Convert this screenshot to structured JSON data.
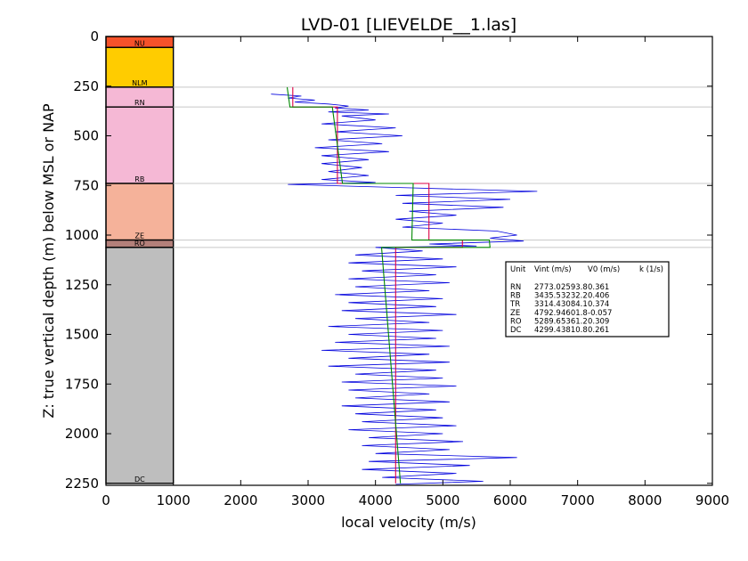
{
  "chart_data": {
    "type": "line",
    "title": "LVD-01 [LIEVELDE__1.las]",
    "xlabel": "local velocity (m/s)",
    "ylabel": "Z: true vertical depth (m) below MSL or NAP",
    "xlim": [
      0,
      9000
    ],
    "ylim": [
      2260,
      0
    ],
    "x_ticks": [
      0,
      1000,
      2000,
      3000,
      4000,
      5000,
      6000,
      7000,
      8000,
      9000
    ],
    "y_ticks": [
      0,
      250,
      500,
      750,
      1000,
      1250,
      1500,
      1750,
      2000,
      2250
    ],
    "grid": false,
    "stratigraphy": [
      {
        "unit": "NU",
        "top": 0,
        "base": 55,
        "color": "#f5522a"
      },
      {
        "unit": "NLM",
        "top": 55,
        "base": 255,
        "color": "#ffcc00"
      },
      {
        "unit": "RN",
        "top": 255,
        "base": 355,
        "color": "#f5b8d5"
      },
      {
        "unit": "RB",
        "top": 355,
        "base": 740,
        "color": "#f5b8d5"
      },
      {
        "unit": "ZE",
        "top": 740,
        "base": 1025,
        "color": "#f5b29a"
      },
      {
        "unit": "RO",
        "top": 1025,
        "base": 1062,
        "color": "#b3807a"
      },
      {
        "unit": "DC",
        "top": 1062,
        "base": 2250,
        "color": "#bebebe"
      }
    ],
    "horizon_depths": [
      255,
      355,
      740,
      1025,
      1062
    ],
    "series": [
      {
        "name": "",
        "color": "#0000dd",
        "points": [
          [
            2450,
            290
          ],
          [
            2900,
            300
          ],
          [
            2700,
            310
          ],
          [
            3100,
            320
          ],
          [
            2800,
            330
          ],
          [
            3300,
            340
          ],
          [
            3600,
            350
          ],
          [
            3400,
            360
          ],
          [
            3900,
            370
          ],
          [
            3300,
            380
          ],
          [
            4200,
            390
          ],
          [
            3500,
            400
          ],
          [
            4000,
            420
          ],
          [
            3200,
            440
          ],
          [
            4300,
            460
          ],
          [
            3400,
            480
          ],
          [
            4400,
            500
          ],
          [
            3300,
            520
          ],
          [
            4100,
            540
          ],
          [
            3100,
            560
          ],
          [
            4200,
            580
          ],
          [
            3200,
            600
          ],
          [
            3900,
            620
          ],
          [
            3200,
            640
          ],
          [
            3800,
            660
          ],
          [
            3300,
            680
          ],
          [
            3900,
            700
          ],
          [
            3200,
            720
          ],
          [
            4000,
            735
          ],
          [
            2700,
            745
          ],
          [
            4300,
            760
          ],
          [
            6400,
            780
          ],
          [
            4300,
            800
          ],
          [
            6000,
            820
          ],
          [
            4400,
            840
          ],
          [
            5900,
            860
          ],
          [
            4500,
            880
          ],
          [
            5200,
            900
          ],
          [
            4300,
            920
          ],
          [
            5000,
            940
          ],
          [
            4400,
            960
          ],
          [
            5800,
            980
          ],
          [
            6100,
            1000
          ],
          [
            5700,
            1015
          ],
          [
            6200,
            1030
          ],
          [
            4800,
            1045
          ],
          [
            5500,
            1055
          ],
          [
            4000,
            1062
          ],
          [
            4700,
            1080
          ],
          [
            3700,
            1100
          ],
          [
            5000,
            1120
          ],
          [
            3600,
            1140
          ],
          [
            5200,
            1160
          ],
          [
            3800,
            1180
          ],
          [
            4900,
            1200
          ],
          [
            3600,
            1220
          ],
          [
            5100,
            1240
          ],
          [
            3700,
            1260
          ],
          [
            4800,
            1280
          ],
          [
            3400,
            1300
          ],
          [
            5000,
            1320
          ],
          [
            3600,
            1340
          ],
          [
            4900,
            1360
          ],
          [
            3500,
            1380
          ],
          [
            5200,
            1400
          ],
          [
            3700,
            1420
          ],
          [
            4800,
            1440
          ],
          [
            3300,
            1460
          ],
          [
            5000,
            1480
          ],
          [
            3600,
            1500
          ],
          [
            4900,
            1520
          ],
          [
            3400,
            1540
          ],
          [
            5100,
            1560
          ],
          [
            3200,
            1580
          ],
          [
            4800,
            1600
          ],
          [
            3600,
            1620
          ],
          [
            5100,
            1640
          ],
          [
            3300,
            1660
          ],
          [
            4900,
            1680
          ],
          [
            3700,
            1700
          ],
          [
            5000,
            1720
          ],
          [
            3500,
            1740
          ],
          [
            5200,
            1760
          ],
          [
            3600,
            1780
          ],
          [
            4800,
            1800
          ],
          [
            3700,
            1820
          ],
          [
            5100,
            1840
          ],
          [
            3500,
            1860
          ],
          [
            4900,
            1880
          ],
          [
            3700,
            1900
          ],
          [
            5000,
            1920
          ],
          [
            3800,
            1940
          ],
          [
            5200,
            1960
          ],
          [
            3600,
            1980
          ],
          [
            5000,
            2000
          ],
          [
            3900,
            2020
          ],
          [
            5300,
            2040
          ],
          [
            3800,
            2060
          ],
          [
            5100,
            2080
          ],
          [
            4000,
            2100
          ],
          [
            6100,
            2120
          ],
          [
            3900,
            2140
          ],
          [
            5400,
            2160
          ],
          [
            3800,
            2180
          ],
          [
            5200,
            2200
          ],
          [
            4100,
            2220
          ],
          [
            5600,
            2240
          ],
          [
            4300,
            2255
          ]
        ]
      },
      {
        "name": "",
        "color": "#dd0044",
        "points": [
          [
            2773,
            255
          ],
          [
            2773,
            355
          ],
          [
            3435,
            355
          ],
          [
            3435,
            740
          ],
          [
            4793,
            740
          ],
          [
            4793,
            1025
          ],
          [
            5290,
            1025
          ],
          [
            5290,
            1062
          ],
          [
            4299,
            1062
          ],
          [
            4299,
            2250
          ]
        ]
      },
      {
        "name": "",
        "color": "#008800",
        "points": [
          [
            2690,
            255
          ],
          [
            2730,
            355
          ],
          [
            3360,
            355
          ],
          [
            3510,
            740
          ],
          [
            4560,
            740
          ],
          [
            4540,
            1025
          ],
          [
            5690,
            1025
          ],
          [
            5700,
            1062
          ],
          [
            4090,
            1062
          ],
          [
            4370,
            2250
          ]
        ]
      }
    ],
    "legend_table": {
      "headers": [
        "Unit",
        "Vint (m/s)",
        "V0 (m/s)",
        "k (1/s)"
      ],
      "rows": [
        [
          "RN",
          "2773.0",
          "2593.8",
          "0.361"
        ],
        [
          "RB",
          "3435.5",
          "3232.2",
          "0.406"
        ],
        [
          "TR",
          "3314.4",
          "3084.1",
          "0.374"
        ],
        [
          "ZE",
          "4792.9",
          "4601.8",
          "-0.057"
        ],
        [
          "RO",
          "5289.6",
          "5361.2",
          "0.309"
        ],
        [
          "DC",
          "4299.4",
          "3810.8",
          "0.261"
        ]
      ]
    }
  }
}
